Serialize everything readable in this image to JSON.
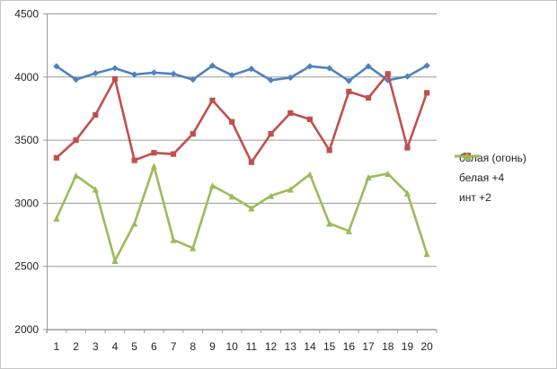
{
  "chart_data": {
    "type": "line",
    "title": "",
    "xlabel": "",
    "ylabel": "",
    "categories": [
      "1",
      "2",
      "3",
      "4",
      "5",
      "6",
      "7",
      "8",
      "9",
      "10",
      "11",
      "12",
      "13",
      "14",
      "15",
      "16",
      "17",
      "18",
      "19",
      "20"
    ],
    "y_ticks": [
      "2000",
      "2500",
      "3000",
      "3500",
      "4000",
      "4500"
    ],
    "ylim": [
      2000,
      4500
    ],
    "grid": "horizontal",
    "legend_position": "right",
    "series": [
      {
        "name": "белая (огонь)",
        "color": "#4F81BD",
        "marker": "diamond",
        "values": [
          4085,
          3980,
          4030,
          4070,
          4020,
          4035,
          4025,
          3980,
          4090,
          4015,
          4065,
          3975,
          3995,
          4085,
          4070,
          3970,
          4085,
          3975,
          4005,
          4090
        ]
      },
      {
        "name": "белая +4",
        "color": "#C0504D",
        "marker": "square",
        "values": [
          3360,
          3500,
          3700,
          3985,
          3340,
          3400,
          3390,
          3550,
          3815,
          3645,
          3325,
          3550,
          3715,
          3665,
          3420,
          3885,
          3835,
          4025,
          3440,
          3875
        ]
      },
      {
        "name": "инт +2",
        "color": "#9BBB59",
        "marker": "triangle",
        "values": [
          2880,
          3220,
          3110,
          2545,
          2840,
          3295,
          2710,
          2645,
          3140,
          3055,
          2960,
          3060,
          3110,
          3230,
          2840,
          2780,
          3205,
          3235,
          3080,
          2600
        ]
      }
    ]
  },
  "colors": {
    "background": "#ffffff",
    "gridline": "#9a9a9a",
    "axis": "#9a9a9a",
    "tick_label": "#1f1f1f",
    "outer_border": "#c6c6c6"
  }
}
